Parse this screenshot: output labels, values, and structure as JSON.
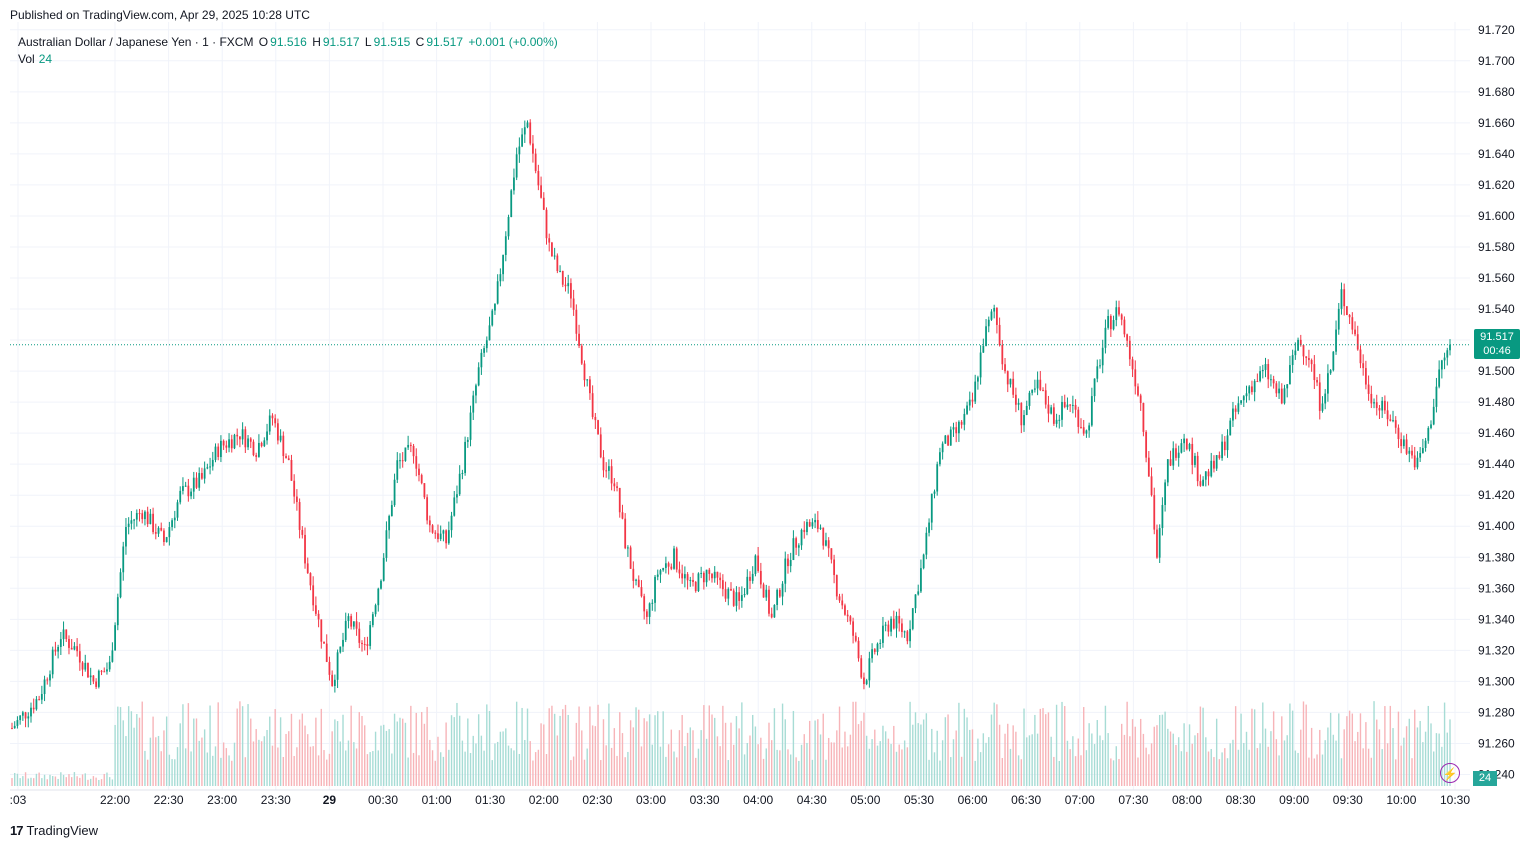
{
  "published": "Published on TradingView.com, Apr 29, 2025 10:28 UTC",
  "legend": {
    "symbol": "Australian Dollar / Japanese Yen · 1 · FXCM",
    "o_label": "O",
    "o": "91.516",
    "h_label": "H",
    "h": "91.517",
    "l_label": "L",
    "l": "91.515",
    "c_label": "C",
    "c": "91.517",
    "change": "+0.001 (+0.00%)",
    "vol_label": "Vol",
    "vol": "24"
  },
  "price_tag": {
    "price": "91.517",
    "countdown": "00:46"
  },
  "volume_tag": "24",
  "footer": {
    "logo": "17",
    "brand": "TradingView"
  },
  "colors": {
    "up": "#089981",
    "down": "#f23645",
    "vol_up": "#a7dcd5",
    "vol_down": "#f7b4b8",
    "grid": "#f0f3fa"
  },
  "icons": {
    "alert": "lightning-bolt-icon"
  },
  "chart_data": {
    "type": "candlestick",
    "ylim": [
      91.23,
      91.725
    ],
    "y_ticks": [
      "91.720",
      "91.700",
      "91.680",
      "91.660",
      "91.640",
      "91.620",
      "91.600",
      "91.580",
      "91.560",
      "91.540",
      "91.520",
      "91.500",
      "91.480",
      "91.460",
      "91.440",
      "91.420",
      "91.400",
      "91.380",
      "91.360",
      "91.340",
      "91.320",
      "91.300",
      "91.280",
      "91.260",
      "91.240"
    ],
    "x_ticks": [
      ":03",
      "22:00",
      "22:30",
      "23:00",
      "23:30",
      "29",
      "00:30",
      "01:00",
      "01:30",
      "02:00",
      "02:30",
      "03:00",
      "03:30",
      "04:00",
      "04:30",
      "05:00",
      "05:30",
      "06:00",
      "06:30",
      "07:00",
      "07:30",
      "08:00",
      "08:30",
      "09:00",
      "09:30",
      "10:00",
      "10:30"
    ],
    "last_price": 91.517,
    "close_path": [
      {
        "t": 0,
        "p": 91.27
      },
      {
        "t": 10,
        "p": 91.29
      },
      {
        "t": 18,
        "p": 91.33
      },
      {
        "t": 24,
        "p": 91.32
      },
      {
        "t": 30,
        "p": 91.3
      },
      {
        "t": 36,
        "p": 91.31
      },
      {
        "t": 42,
        "p": 91.4
      },
      {
        "t": 48,
        "p": 91.41
      },
      {
        "t": 56,
        "p": 91.39
      },
      {
        "t": 62,
        "p": 91.42
      },
      {
        "t": 70,
        "p": 91.43
      },
      {
        "t": 76,
        "p": 91.45
      },
      {
        "t": 84,
        "p": 91.46
      },
      {
        "t": 90,
        "p": 91.45
      },
      {
        "t": 96,
        "p": 91.47
      },
      {
        "t": 102,
        "p": 91.44
      },
      {
        "t": 108,
        "p": 91.38
      },
      {
        "t": 114,
        "p": 91.33
      },
      {
        "t": 118,
        "p": 91.3
      },
      {
        "t": 124,
        "p": 91.34
      },
      {
        "t": 130,
        "p": 91.32
      },
      {
        "t": 136,
        "p": 91.37
      },
      {
        "t": 142,
        "p": 91.44
      },
      {
        "t": 148,
        "p": 91.45
      },
      {
        "t": 154,
        "p": 91.4
      },
      {
        "t": 160,
        "p": 91.39
      },
      {
        "t": 166,
        "p": 91.44
      },
      {
        "t": 172,
        "p": 91.5
      },
      {
        "t": 178,
        "p": 91.54
      },
      {
        "t": 182,
        "p": 91.59
      },
      {
        "t": 186,
        "p": 91.64
      },
      {
        "t": 190,
        "p": 91.66
      },
      {
        "t": 194,
        "p": 91.62
      },
      {
        "t": 198,
        "p": 91.58
      },
      {
        "t": 202,
        "p": 91.56
      },
      {
        "t": 206,
        "p": 91.55
      },
      {
        "t": 210,
        "p": 91.51
      },
      {
        "t": 214,
        "p": 91.47
      },
      {
        "t": 218,
        "p": 91.44
      },
      {
        "t": 222,
        "p": 91.43
      },
      {
        "t": 226,
        "p": 91.39
      },
      {
        "t": 230,
        "p": 91.36
      },
      {
        "t": 234,
        "p": 91.34
      },
      {
        "t": 238,
        "p": 91.37
      },
      {
        "t": 244,
        "p": 91.38
      },
      {
        "t": 250,
        "p": 91.36
      },
      {
        "t": 256,
        "p": 91.37
      },
      {
        "t": 262,
        "p": 91.36
      },
      {
        "t": 268,
        "p": 91.35
      },
      {
        "t": 274,
        "p": 91.38
      },
      {
        "t": 280,
        "p": 91.34
      },
      {
        "t": 286,
        "p": 91.38
      },
      {
        "t": 292,
        "p": 91.4
      },
      {
        "t": 298,
        "p": 91.4
      },
      {
        "t": 304,
        "p": 91.36
      },
      {
        "t": 310,
        "p": 91.33
      },
      {
        "t": 314,
        "p": 91.3
      },
      {
        "t": 318,
        "p": 91.32
      },
      {
        "t": 324,
        "p": 91.34
      },
      {
        "t": 330,
        "p": 91.33
      },
      {
        "t": 336,
        "p": 91.38
      },
      {
        "t": 342,
        "p": 91.45
      },
      {
        "t": 348,
        "p": 91.46
      },
      {
        "t": 354,
        "p": 91.48
      },
      {
        "t": 358,
        "p": 91.52
      },
      {
        "t": 362,
        "p": 91.54
      },
      {
        "t": 366,
        "p": 91.5
      },
      {
        "t": 372,
        "p": 91.47
      },
      {
        "t": 378,
        "p": 91.49
      },
      {
        "t": 384,
        "p": 91.47
      },
      {
        "t": 390,
        "p": 91.48
      },
      {
        "t": 396,
        "p": 91.46
      },
      {
        "t": 400,
        "p": 91.5
      },
      {
        "t": 404,
        "p": 91.53
      },
      {
        "t": 408,
        "p": 91.54
      },
      {
        "t": 412,
        "p": 91.51
      },
      {
        "t": 416,
        "p": 91.48
      },
      {
        "t": 420,
        "p": 91.42
      },
      {
        "t": 422,
        "p": 91.38
      },
      {
        "t": 426,
        "p": 91.44
      },
      {
        "t": 432,
        "p": 91.46
      },
      {
        "t": 438,
        "p": 91.43
      },
      {
        "t": 444,
        "p": 91.44
      },
      {
        "t": 450,
        "p": 91.47
      },
      {
        "t": 456,
        "p": 91.49
      },
      {
        "t": 462,
        "p": 91.5
      },
      {
        "t": 468,
        "p": 91.48
      },
      {
        "t": 474,
        "p": 91.52
      },
      {
        "t": 478,
        "p": 91.51
      },
      {
        "t": 482,
        "p": 91.48
      },
      {
        "t": 486,
        "p": 91.5
      },
      {
        "t": 490,
        "p": 91.55
      },
      {
        "t": 494,
        "p": 91.53
      },
      {
        "t": 498,
        "p": 91.5
      },
      {
        "t": 502,
        "p": 91.48
      },
      {
        "t": 508,
        "p": 91.47
      },
      {
        "t": 514,
        "p": 91.45
      },
      {
        "t": 518,
        "p": 91.44
      },
      {
        "t": 522,
        "p": 91.46
      },
      {
        "t": 526,
        "p": 91.5
      },
      {
        "t": 530,
        "p": 91.517
      }
    ]
  }
}
